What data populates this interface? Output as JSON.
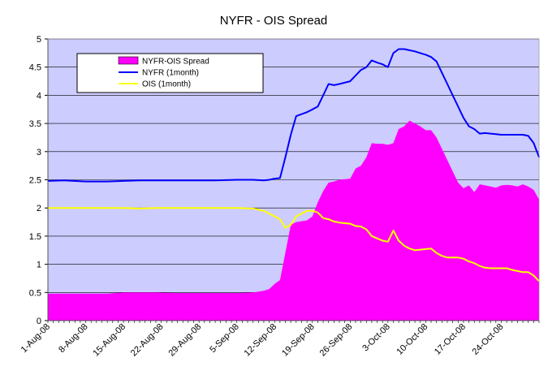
{
  "chart_data": {
    "type": "line",
    "title": "NYFR - OIS Spread",
    "xlabel": "",
    "ylabel": "",
    "ylim": [
      0,
      5
    ],
    "yticks": [
      "0",
      "0.5",
      "1",
      "1.5",
      "2",
      "2.5",
      "3",
      "3.5",
      "4",
      "4.5",
      "5"
    ],
    "xticks": [
      "1-Aug-08",
      "8-Aug-08",
      "15-Aug-08",
      "22-Aug-08",
      "29-Aug-08",
      "5-Sep-08",
      "12-Sep-08",
      "19-Sep-08",
      "26-Sep-08",
      "3-Oct-08",
      "10-Oct-08",
      "17-Oct-08",
      "24-Oct-08"
    ],
    "x_range_days": [
      0,
      91
    ],
    "grid": true,
    "legend_position": "top-left",
    "plot_background": "#ccccff",
    "series": [
      {
        "name": "NYFR-OIS Spread",
        "type": "area",
        "color": "#ff00ff",
        "x": [
          0,
          3,
          7,
          11,
          14,
          17,
          20,
          24,
          28,
          31,
          35,
          38,
          40,
          41,
          42,
          43,
          45,
          46,
          48,
          49,
          50,
          51,
          52,
          53,
          54,
          56,
          57,
          58,
          59,
          60,
          61,
          62,
          63,
          64,
          65,
          66,
          67,
          68,
          69,
          70,
          71,
          72,
          73,
          74,
          75,
          76,
          77,
          78,
          79,
          80,
          81,
          82,
          83,
          84,
          85,
          86,
          87,
          88,
          89,
          90,
          91
        ],
        "y": [
          0.48,
          0.48,
          0.48,
          0.48,
          0.5,
          0.5,
          0.5,
          0.49,
          0.49,
          0.49,
          0.49,
          0.5,
          0.53,
          0.56,
          0.65,
          0.72,
          1.7,
          1.75,
          1.78,
          1.85,
          2.1,
          2.3,
          2.45,
          2.47,
          2.5,
          2.52,
          2.7,
          2.75,
          2.9,
          3.15,
          3.14,
          3.14,
          3.12,
          3.15,
          3.4,
          3.45,
          3.55,
          3.5,
          3.45,
          3.38,
          3.38,
          3.25,
          3.05,
          2.85,
          2.65,
          2.45,
          2.35,
          2.4,
          2.28,
          2.42,
          2.4,
          2.38,
          2.36,
          2.4,
          2.41,
          2.4,
          2.38,
          2.42,
          2.38,
          2.32,
          2.15
        ]
      },
      {
        "name": "NYFR (1month)",
        "type": "line",
        "color": "#0000ff",
        "x": [
          0,
          3,
          7,
          11,
          14,
          17,
          20,
          24,
          28,
          31,
          35,
          38,
          40,
          41,
          42,
          43,
          44,
          45,
          46,
          48,
          49,
          50,
          51,
          52,
          53,
          54,
          56,
          57,
          58,
          59,
          60,
          61,
          62,
          63,
          64,
          65,
          66,
          67,
          68,
          69,
          70,
          71,
          72,
          73,
          74,
          75,
          76,
          77,
          78,
          79,
          80,
          81,
          82,
          83,
          84,
          85,
          86,
          87,
          88,
          89,
          90,
          91
        ],
        "y": [
          2.48,
          2.49,
          2.47,
          2.47,
          2.48,
          2.49,
          2.49,
          2.49,
          2.49,
          2.49,
          2.5,
          2.5,
          2.49,
          2.5,
          2.52,
          2.53,
          2.9,
          3.3,
          3.63,
          3.7,
          3.75,
          3.8,
          4.0,
          4.2,
          4.18,
          4.2,
          4.25,
          4.35,
          4.45,
          4.5,
          4.62,
          4.58,
          4.55,
          4.5,
          4.75,
          4.82,
          4.82,
          4.8,
          4.78,
          4.75,
          4.72,
          4.68,
          4.6,
          4.4,
          4.2,
          4.0,
          3.8,
          3.6,
          3.45,
          3.4,
          3.32,
          3.33,
          3.32,
          3.31,
          3.3,
          3.3,
          3.3,
          3.3,
          3.3,
          3.28,
          3.15,
          2.9
        ]
      },
      {
        "name": "OIS (1month)",
        "type": "line",
        "color": "#ffff00",
        "x": [
          0,
          3,
          7,
          11,
          14,
          17,
          20,
          24,
          28,
          31,
          35,
          38,
          40,
          41,
          42,
          43,
          44,
          45,
          46,
          48,
          49,
          50,
          51,
          52,
          53,
          54,
          56,
          57,
          58,
          59,
          60,
          61,
          62,
          63,
          64,
          65,
          66,
          67,
          68,
          69,
          70,
          71,
          72,
          73,
          74,
          75,
          76,
          77,
          78,
          79,
          80,
          81,
          82,
          83,
          84,
          85,
          86,
          87,
          88,
          89,
          90,
          91
        ],
        "y": [
          2.0,
          2.0,
          2.0,
          2.0,
          2.0,
          1.99,
          2.0,
          2.0,
          2.0,
          2.0,
          2.0,
          1.99,
          1.95,
          1.9,
          1.85,
          1.8,
          1.65,
          1.7,
          1.85,
          1.95,
          1.95,
          1.92,
          1.82,
          1.8,
          1.76,
          1.74,
          1.72,
          1.68,
          1.67,
          1.62,
          1.5,
          1.46,
          1.42,
          1.4,
          1.6,
          1.42,
          1.33,
          1.28,
          1.25,
          1.26,
          1.27,
          1.28,
          1.2,
          1.15,
          1.12,
          1.12,
          1.12,
          1.1,
          1.05,
          1.02,
          0.97,
          0.94,
          0.93,
          0.93,
          0.93,
          0.93,
          0.9,
          0.88,
          0.86,
          0.86,
          0.8,
          0.7
        ]
      }
    ]
  }
}
